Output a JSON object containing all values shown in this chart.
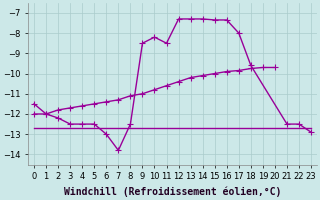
{
  "background_color": "#cce8e8",
  "grid_color": "#aacccc",
  "line_color": "#990099",
  "marker": "+",
  "markersize": 4,
  "linewidth": 1.0,
  "xlim": [
    -0.5,
    23.5
  ],
  "ylim": [
    -14.5,
    -6.5
  ],
  "yticks": [
    -14,
    -13,
    -12,
    -11,
    -10,
    -9,
    -8,
    -7
  ],
  "xlabel": "Windchill (Refroidissement éolien,°C)",
  "xlabel_fontsize": 7.0,
  "tick_fontsize": 6.0,
  "series1_x": [
    0,
    1,
    2,
    3,
    4,
    5,
    6,
    7,
    8,
    9,
    10,
    11,
    12,
    13,
    14,
    15,
    16,
    17,
    18,
    21,
    22,
    23
  ],
  "series1_y": [
    -11.5,
    -12.0,
    -12.2,
    -12.5,
    -12.5,
    -12.5,
    -13.0,
    -13.8,
    -12.5,
    -8.5,
    -8.2,
    -8.5,
    -7.3,
    -7.3,
    -7.3,
    -7.35,
    -7.35,
    -8.0,
    -9.6,
    -12.5,
    -12.5,
    -12.9
  ],
  "series2_x": [
    0,
    1,
    2,
    3,
    4,
    5,
    6,
    7,
    8,
    9,
    10,
    11,
    12,
    13,
    14,
    15,
    16,
    17,
    18,
    19,
    20
  ],
  "series2_y": [
    -12.0,
    -12.0,
    -11.8,
    -11.7,
    -11.6,
    -11.5,
    -11.4,
    -11.3,
    -11.1,
    -11.0,
    -10.8,
    -10.6,
    -10.4,
    -10.2,
    -10.1,
    -10.0,
    -9.9,
    -9.85,
    -9.75,
    -9.7,
    -9.7
  ],
  "series3_x": [
    0,
    1,
    2,
    3,
    4,
    5,
    6,
    7,
    8,
    9,
    10,
    11,
    12,
    13,
    14,
    15,
    16,
    17,
    18,
    19,
    20,
    21,
    22,
    23
  ],
  "series3_y": [
    -12.7,
    -12.7,
    -12.7,
    -12.7,
    -12.7,
    -12.7,
    -12.7,
    -12.7,
    -12.7,
    -12.7,
    -12.7,
    -12.7,
    -12.7,
    -12.7,
    -12.7,
    -12.7,
    -12.7,
    -12.7,
    -12.7,
    -12.7,
    -12.7,
    -12.7,
    -12.7,
    -12.7
  ]
}
